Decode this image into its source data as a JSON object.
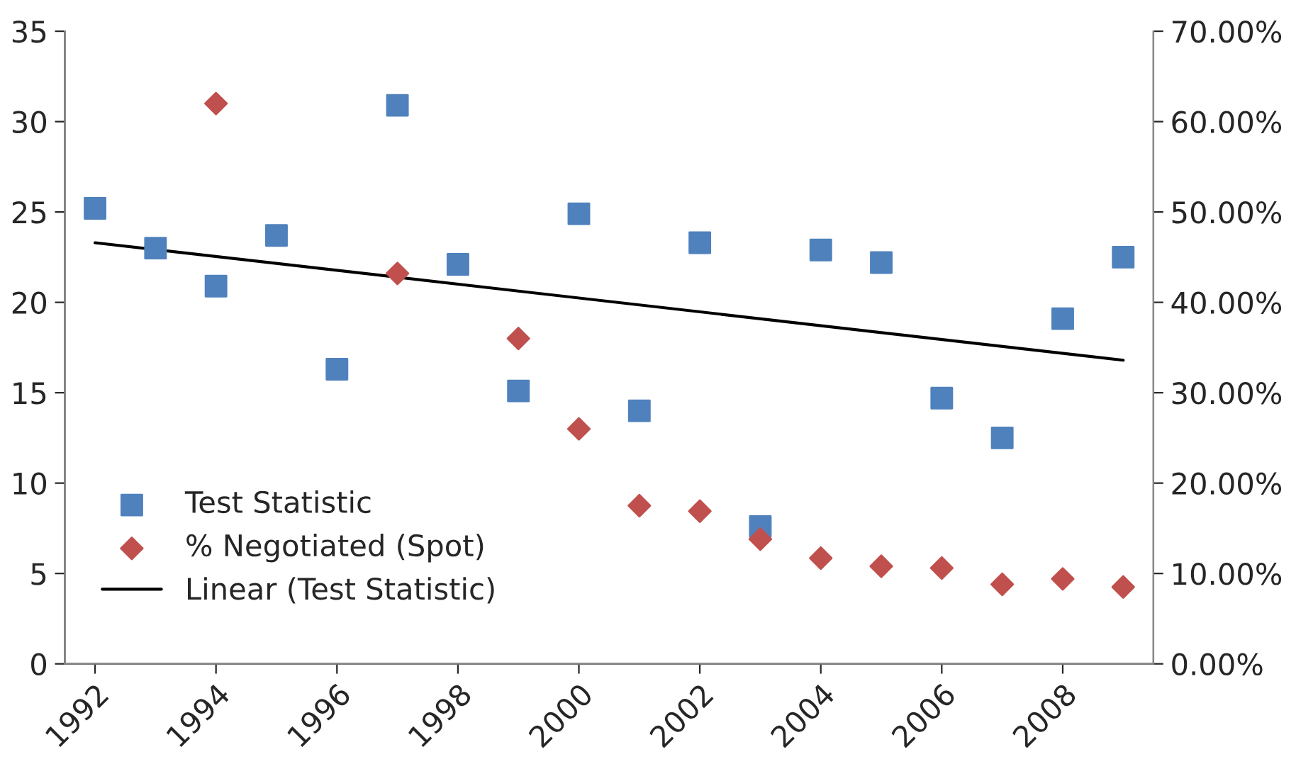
{
  "chart_data": {
    "type": "scatter",
    "x": [
      1992,
      1993,
      1994,
      1995,
      1996,
      1997,
      1998,
      1999,
      2000,
      2001,
      2002,
      2003,
      2004,
      2005,
      2006,
      2007,
      2008,
      2009
    ],
    "xlim": [
      1991.5,
      2009.5
    ],
    "xticks": [
      1992,
      1994,
      1996,
      1998,
      2000,
      2002,
      2004,
      2006,
      2008
    ],
    "ylim": [
      0,
      35
    ],
    "yticks": [
      0,
      5,
      10,
      15,
      20,
      25,
      30,
      35
    ],
    "y2lim": [
      0,
      70
    ],
    "y2ticks": [
      {
        "value": 0,
        "label": "0.00%"
      },
      {
        "value": 10,
        "label": "10.00%"
      },
      {
        "value": 20,
        "label": "20.00%"
      },
      {
        "value": 30,
        "label": "30.00%"
      },
      {
        "value": 40,
        "label": "40.00%"
      },
      {
        "value": 50,
        "label": "50.00%"
      },
      {
        "value": 60,
        "label": "60.00%"
      },
      {
        "value": 70,
        "label": "70.00%"
      }
    ],
    "legend": "bottom left",
    "grid": false,
    "series": [
      {
        "name": "Test Statistic",
        "marker": "square",
        "color": "#4f81bd",
        "values": [
          25.2,
          23.0,
          20.9,
          23.7,
          16.3,
          30.9,
          22.1,
          15.1,
          24.9,
          14.0,
          23.3,
          7.6,
          22.9,
          22.2,
          14.7,
          12.5,
          19.1,
          22.5
        ]
      },
      {
        "name": "% Negotiated (Spot)",
        "marker": "diamond",
        "color": "#c0504d",
        "axis": "y2",
        "x": [
          1994,
          1997,
          1999,
          2000,
          2001,
          2002,
          2003,
          2004,
          2005,
          2006,
          2007,
          2008,
          2009
        ],
        "values": [
          62.0,
          43.2,
          36.0,
          26.0,
          17.5,
          16.9,
          13.8,
          11.7,
          10.8,
          10.6,
          8.8,
          9.4,
          8.5
        ]
      },
      {
        "name": "Linear (Test Statistic)",
        "type": "line",
        "marker": "none",
        "line_style": "solid",
        "color": "#000000",
        "x": [
          1992,
          2009
        ],
        "values": [
          23.3,
          16.8
        ]
      }
    ]
  }
}
